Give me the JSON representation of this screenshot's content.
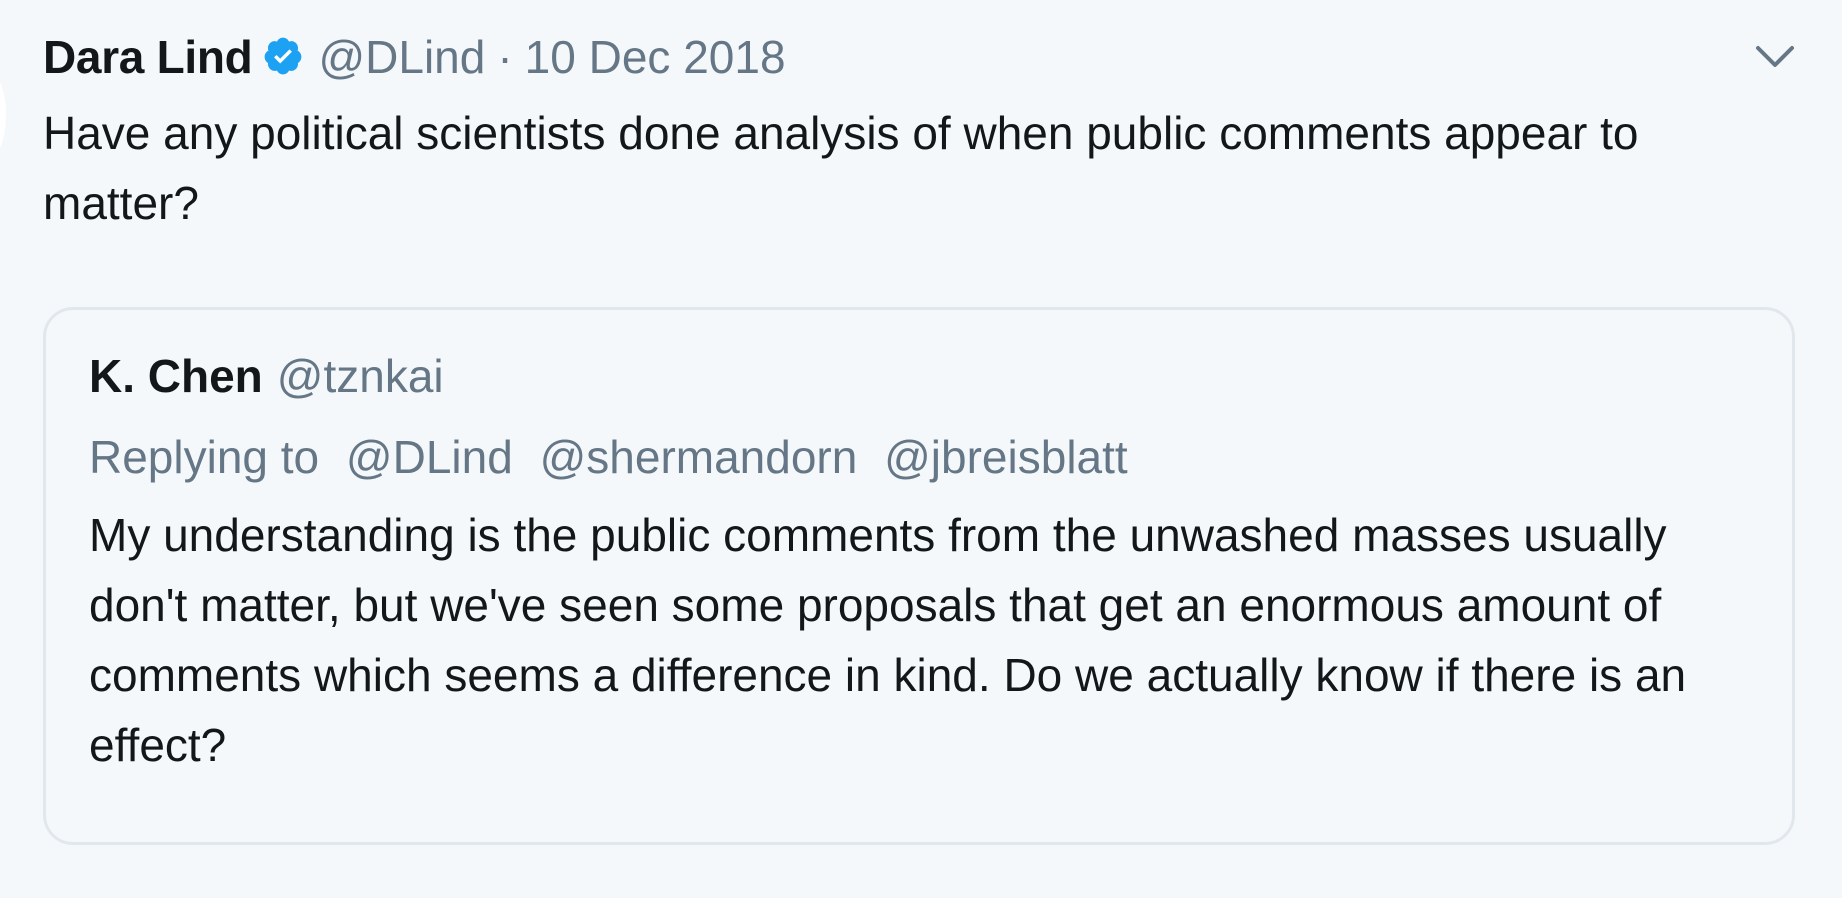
{
  "tweet": {
    "author_name": "Dara Lind",
    "verified_icon": "verified-badge-icon",
    "handle": "@DLind",
    "separator": "·",
    "date": "10 Dec 2018",
    "menu_icon": "chevron-down-icon",
    "text": "Have any political scientists done analysis of when public comments appear to matter?"
  },
  "quoted_tweet": {
    "author_name": "K. Chen",
    "handle": "@tznkai",
    "replying_label": "Replying to",
    "replying_to": [
      "@DLind",
      "@shermandorn",
      "@jbreisblatt"
    ],
    "text": "My understanding is the public comments from the unwashed masses usually don't matter, but we've seen some proposals that get an enormous amount of comments which seems a difference in kind. Do we actually know if there is an effect?"
  },
  "colors": {
    "background": "#f5f8fa",
    "text": "#14171a",
    "secondary_text": "#657786",
    "verified_blue": "#1da1f2",
    "quote_border": "#e1e8ed"
  }
}
